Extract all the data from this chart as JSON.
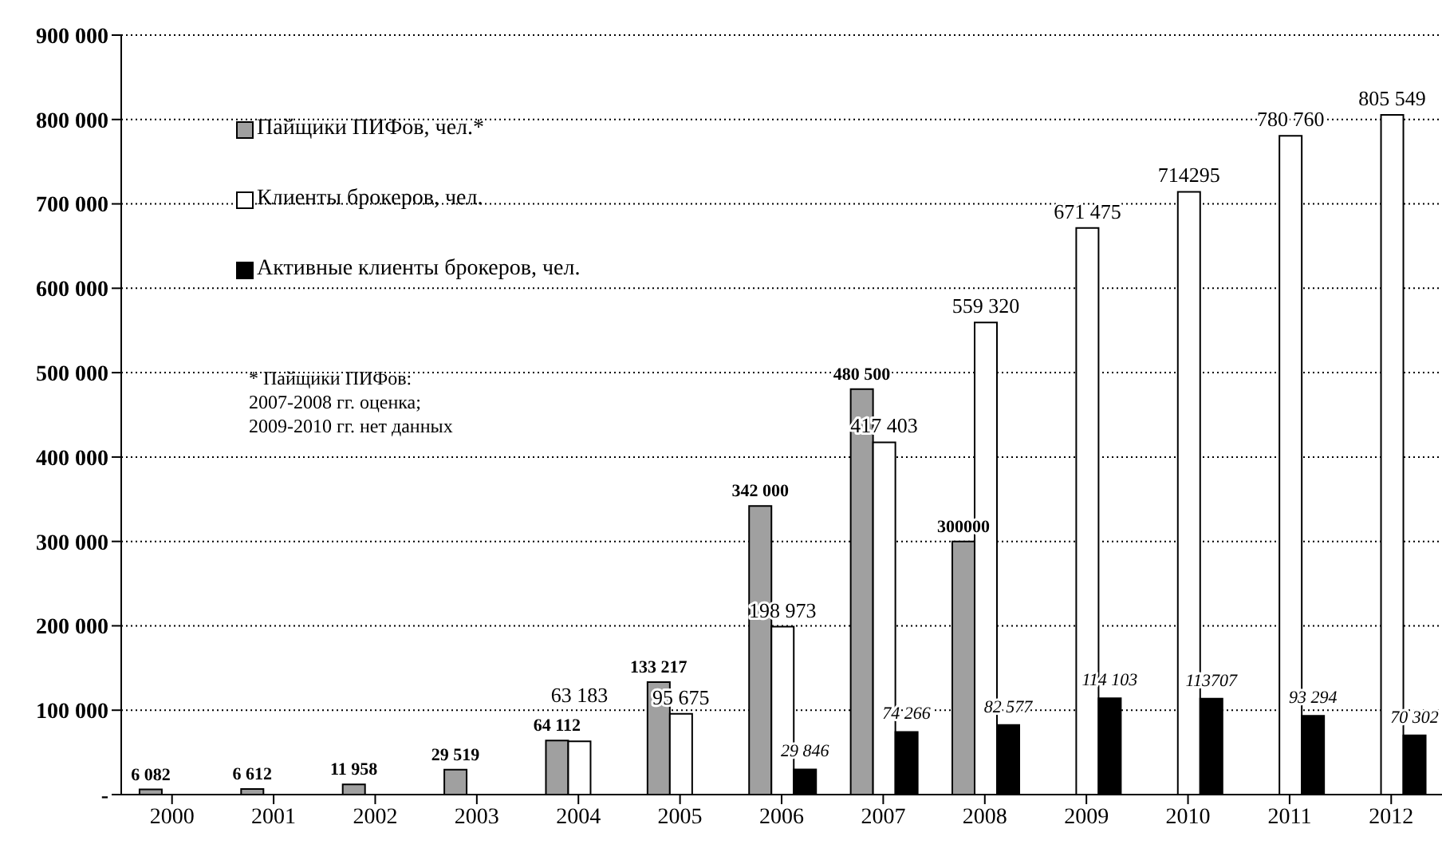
{
  "chart_data": {
    "type": "bar",
    "categories": [
      "2000",
      "2001",
      "2002",
      "2003",
      "2004",
      "2005",
      "2006",
      "2007",
      "2008",
      "2009",
      "2010",
      "2011",
      "2012"
    ],
    "series": [
      {
        "name": "Пайщики ПИФов, чел.*",
        "color": "#a0a0a0",
        "values": [
          6082,
          6612,
          11958,
          29519,
          64112,
          133217,
          342000,
          480500,
          300000,
          null,
          null,
          null,
          null
        ],
        "value_labels": [
          "6 082",
          "6 612",
          "11 958",
          "29 519",
          "64 112",
          "133 217",
          "342 000",
          "480 500",
          "300000",
          null,
          null,
          null,
          null
        ]
      },
      {
        "name": "Клиенты брокеров, чел.",
        "color": "#ffffff",
        "values": [
          null,
          null,
          null,
          null,
          63183,
          95675,
          198973,
          417403,
          559320,
          671475,
          714295,
          780760,
          805549
        ],
        "value_labels": [
          null,
          null,
          null,
          null,
          "63 183",
          "95 675",
          "198 973",
          "417 403",
          "559 320",
          "671 475",
          "714295",
          "780 760",
          "805 549"
        ]
      },
      {
        "name": "Активные клиенты брокеров, чел.",
        "color": "#000000",
        "values": [
          null,
          null,
          null,
          null,
          null,
          null,
          29846,
          74266,
          82577,
          114103,
          113707,
          93294,
          70302
        ],
        "value_labels": [
          null,
          null,
          null,
          null,
          null,
          null,
          "29 846",
          "74 266",
          "82 577",
          "114 103",
          "113707",
          "93 294",
          "70 302"
        ]
      }
    ],
    "ylim": [
      0,
      900000
    ],
    "yticks": [
      {
        "value": 0,
        "label": "-"
      },
      {
        "value": 100000,
        "label": "100 000"
      },
      {
        "value": 200000,
        "label": "200 000"
      },
      {
        "value": 300000,
        "label": "300 000"
      },
      {
        "value": 400000,
        "label": "400 000"
      },
      {
        "value": 500000,
        "label": "500 000"
      },
      {
        "value": 600000,
        "label": "600 000"
      },
      {
        "value": 700000,
        "label": "700 000"
      },
      {
        "value": 800000,
        "label": "800 000"
      },
      {
        "value": 900000,
        "label": "900 000"
      }
    ],
    "grid": "y",
    "legend": "top left",
    "annotations": [
      "* Пайщики ПИФов:\n2007-2008 гг. оценка;\n2009-2010 гг. нет данных"
    ]
  }
}
